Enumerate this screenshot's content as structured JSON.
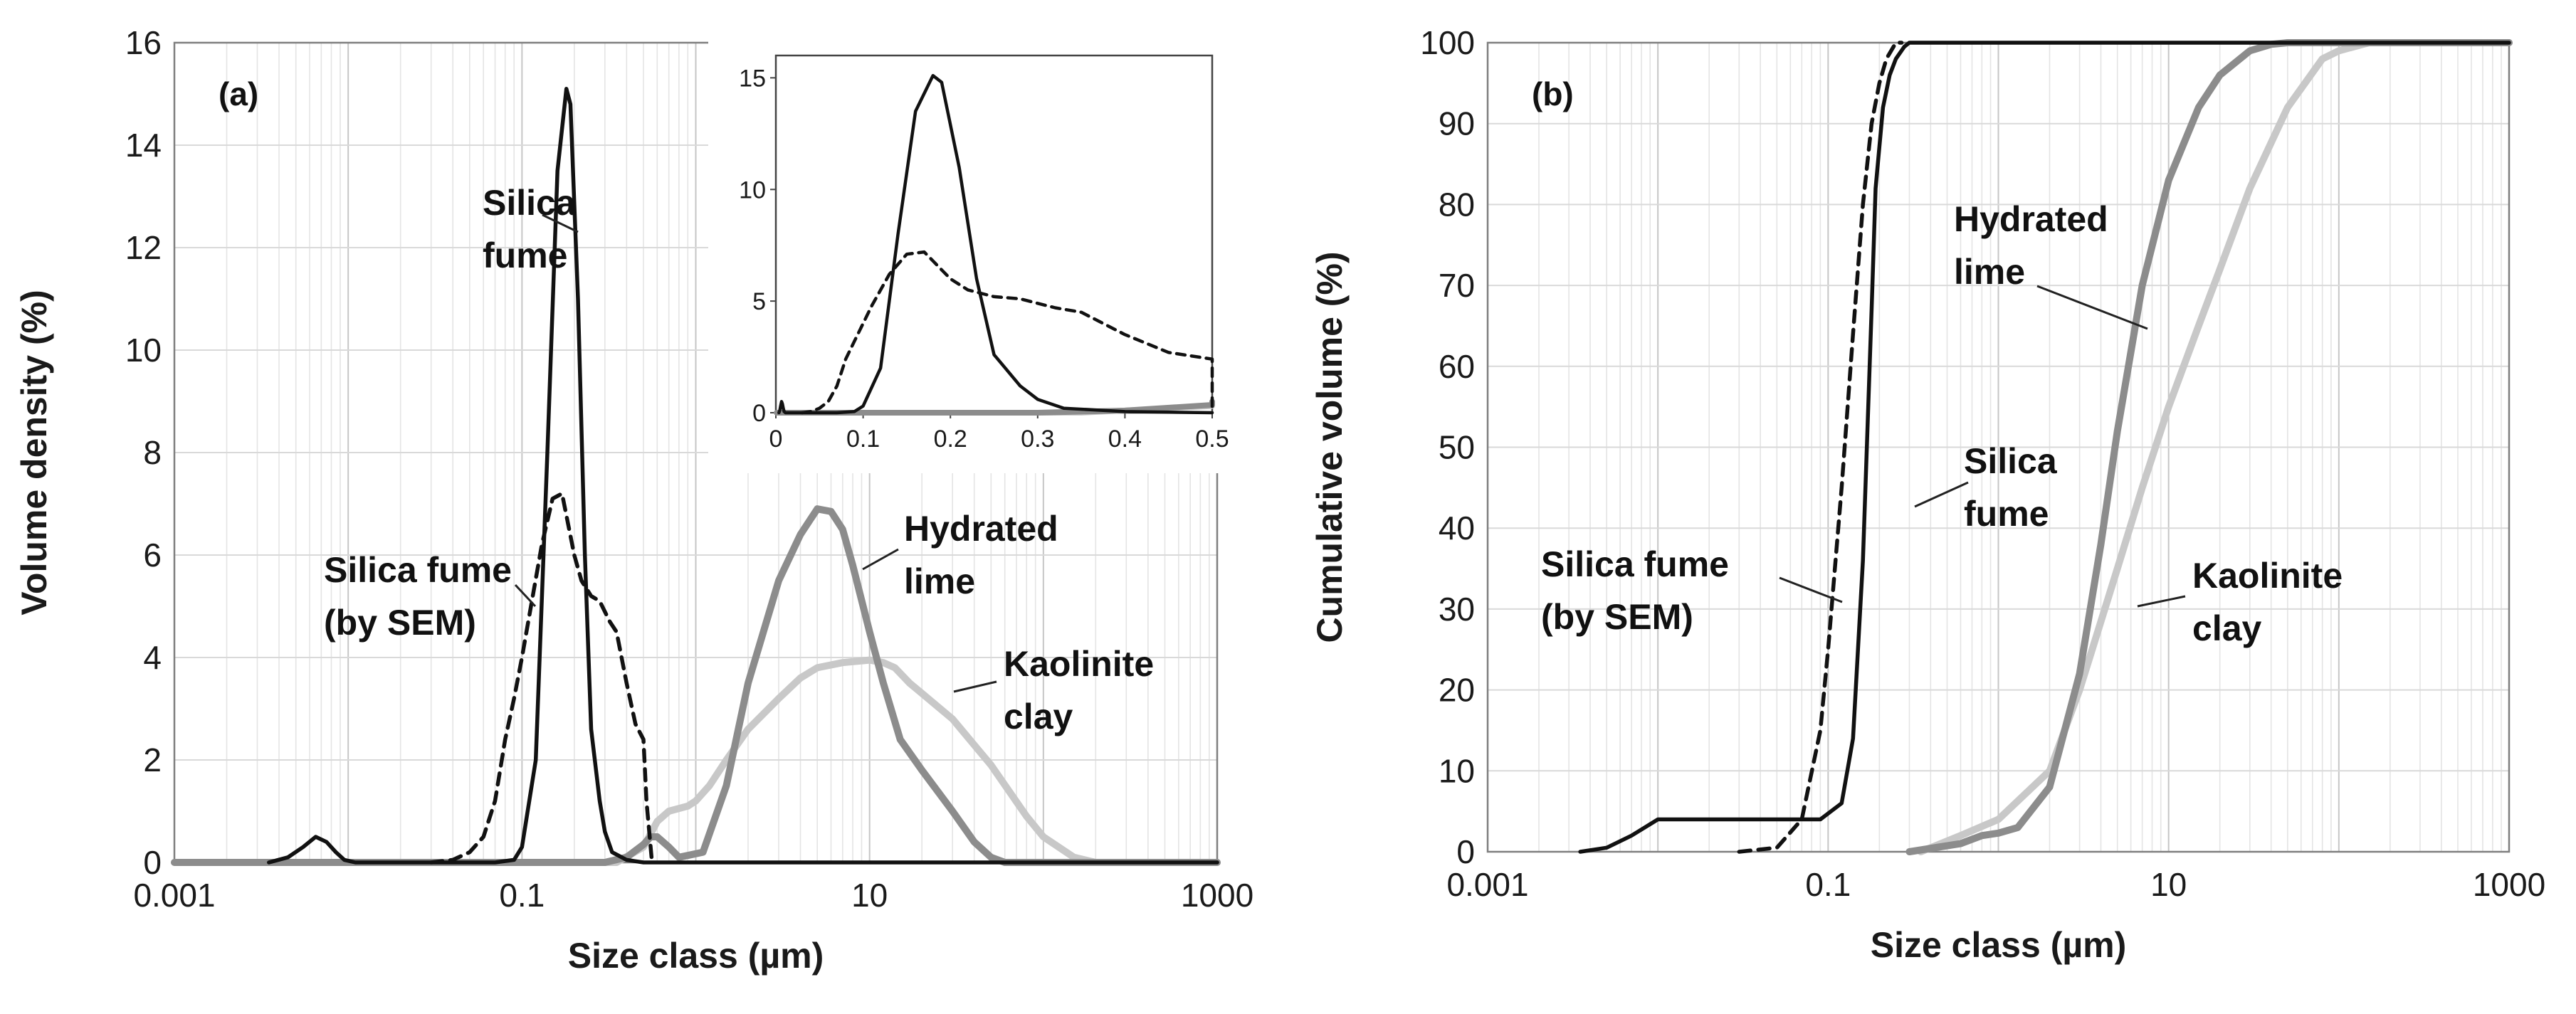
{
  "chart_data": [
    {
      "type": "line",
      "panel_label": "(a)",
      "xlabel": "Size class (µm)",
      "ylabel": "Volume density (%)",
      "xscale": "log",
      "xlim": [
        0.001,
        1000
      ],
      "ylim": [
        0,
        16
      ],
      "xticks": [
        "0.001",
        "0.1",
        "10",
        "1000"
      ],
      "yticks": [
        "0",
        "2",
        "4",
        "6",
        "8",
        "10",
        "12",
        "14",
        "16"
      ],
      "grid": "log-x minor grid",
      "series": [
        {
          "name": "Silica fume",
          "style": "solid",
          "color": "#111111",
          "x": [
            0.0035,
            0.0045,
            0.0055,
            0.0065,
            0.0075,
            0.0085,
            0.0095,
            0.011,
            0.013,
            0.025,
            0.07,
            0.09,
            0.1,
            0.12,
            0.14,
            0.16,
            0.18,
            0.19,
            0.21,
            0.23,
            0.25,
            0.28,
            0.3,
            0.33,
            0.4,
            0.5,
            1000
          ],
          "y": [
            0,
            0.1,
            0.3,
            0.5,
            0.4,
            0.2,
            0.05,
            0,
            0,
            0,
            0,
            0.05,
            0.3,
            2,
            8,
            13.5,
            15.1,
            14.8,
            11,
            6,
            2.6,
            1.2,
            0.6,
            0.2,
            0.05,
            0,
            0
          ]
        },
        {
          "name": "Silica fume (by SEM)",
          "style": "dashed",
          "color": "#111111",
          "x": [
            0.03,
            0.04,
            0.05,
            0.06,
            0.07,
            0.08,
            0.09,
            0.1,
            0.11,
            0.13,
            0.15,
            0.17,
            0.2,
            0.22,
            0.25,
            0.28,
            0.32,
            0.35,
            0.4,
            0.45,
            0.5,
            0.52,
            0.56
          ],
          "y": [
            0,
            0.05,
            0.2,
            0.5,
            1.2,
            2.4,
            3.2,
            4,
            4.8,
            6.2,
            7.1,
            7.2,
            6,
            5.5,
            5.2,
            5.1,
            4.7,
            4.5,
            3.5,
            2.7,
            2.4,
            1.2,
            0
          ]
        },
        {
          "name": "Hydrated lime",
          "style": "solid",
          "color": "#8c8c8c",
          "x": [
            0.001,
            0.3,
            0.4,
            0.5,
            0.55,
            0.6,
            0.7,
            0.8,
            1.1,
            1.5,
            2,
            3,
            4,
            5,
            6,
            7,
            8,
            10,
            12,
            15,
            20,
            30,
            40,
            50,
            60,
            1000
          ],
          "y": [
            0,
            0,
            0.1,
            0.35,
            0.5,
            0.5,
            0.3,
            0.1,
            0.2,
            1.5,
            3.5,
            5.5,
            6.4,
            6.9,
            6.85,
            6.5,
            5.8,
            4.5,
            3.5,
            2.4,
            1.8,
            1,
            0.4,
            0.1,
            0,
            0
          ]
        },
        {
          "name": "Kaolinite clay",
          "style": "solid",
          "color": "#c8c8c8",
          "x": [
            0.001,
            0.35,
            0.5,
            0.6,
            0.7,
            0.9,
            1,
            1.2,
            1.5,
            2,
            3,
            4,
            5,
            7,
            10,
            12,
            14,
            17,
            20,
            30,
            50,
            80,
            100,
            150,
            200,
            1000
          ],
          "y": [
            0,
            0,
            0.3,
            0.8,
            1,
            1.1,
            1.2,
            1.5,
            2,
            2.6,
            3.2,
            3.6,
            3.8,
            3.9,
            3.95,
            3.9,
            3.8,
            3.5,
            3.3,
            2.8,
            1.9,
            0.9,
            0.5,
            0.1,
            0,
            0
          ]
        }
      ],
      "annotations": [
        {
          "lines": [
            "Silica",
            "fume"
          ]
        },
        {
          "lines": [
            "Silica fume",
            "(by SEM)"
          ]
        },
        {
          "lines": [
            "Hydrated",
            "lime"
          ]
        },
        {
          "lines": [
            "Kaolinite",
            "clay"
          ]
        }
      ],
      "inset": {
        "type": "line",
        "xscale": "linear",
        "xlim": [
          0,
          0.5
        ],
        "ylim": [
          0,
          16
        ],
        "xticks": [
          "0",
          "0.1",
          "0.2",
          "0.3",
          "0.4",
          "0.5"
        ],
        "yticks": [
          "0",
          "5",
          "10",
          "15"
        ]
      }
    },
    {
      "type": "line",
      "panel_label": "(b)",
      "xlabel": "Size class (µm)",
      "ylabel": "Cumulative volume (%)",
      "xscale": "log",
      "xlim": [
        0.001,
        1000
      ],
      "ylim": [
        0,
        100
      ],
      "xticks": [
        "0.001",
        "0.1",
        "10",
        "1000"
      ],
      "yticks": [
        "0",
        "10",
        "20",
        "30",
        "40",
        "50",
        "60",
        "70",
        "80",
        "90",
        "100"
      ],
      "grid": "log-x minor grid + horizontal major grid",
      "series": [
        {
          "name": "Silica fume",
          "style": "solid",
          "color": "#111111",
          "x": [
            0.0035,
            0.005,
            0.007,
            0.01,
            0.03,
            0.09,
            0.12,
            0.14,
            0.16,
            0.18,
            0.19,
            0.21,
            0.23,
            0.25,
            0.28,
            0.3,
            0.35,
            0.5,
            1000
          ],
          "y": [
            0,
            0.5,
            2,
            4,
            4,
            4,
            6,
            14,
            36,
            67,
            82,
            92,
            96,
            98,
            99.5,
            100,
            100,
            100,
            100
          ]
        },
        {
          "name": "Silica fume (by SEM)",
          "style": "dashed",
          "color": "#111111",
          "x": [
            0.03,
            0.05,
            0.07,
            0.09,
            0.1,
            0.12,
            0.14,
            0.16,
            0.18,
            0.2,
            0.22,
            0.25,
            0.27
          ],
          "y": [
            0,
            0.5,
            4,
            15,
            25,
            45,
            64,
            80,
            90,
            95,
            98,
            100,
            100
          ]
        },
        {
          "name": "Hydrated lime",
          "style": "solid",
          "color": "#8c8c8c",
          "x": [
            0.3,
            0.6,
            0.8,
            1,
            1.3,
            2,
            3,
            4,
            5,
            7,
            10,
            15,
            20,
            30,
            40,
            50,
            60,
            1000
          ],
          "y": [
            0,
            1,
            2,
            2.3,
            3,
            8,
            22,
            38,
            52,
            70,
            83,
            92,
            96,
            99,
            99.8,
            100,
            100,
            100
          ]
        },
        {
          "name": "Kaolinite clay",
          "style": "solid",
          "color": "#c8c8c8",
          "x": [
            0.35,
            0.6,
            1,
            2,
            3,
            5,
            7,
            10,
            15,
            20,
            30,
            50,
            80,
            100,
            150,
            200,
            1000
          ],
          "y": [
            0,
            2,
            4,
            10,
            20,
            35,
            45,
            55,
            65,
            72,
            82,
            92,
            98,
            99,
            100,
            100,
            100
          ]
        }
      ],
      "annotations": [
        {
          "lines": [
            "Hydrated",
            "lime"
          ]
        },
        {
          "lines": [
            "Silica",
            "fume"
          ]
        },
        {
          "lines": [
            "Silica fume",
            "(by SEM)"
          ]
        },
        {
          "lines": [
            "Kaolinite",
            "clay"
          ]
        }
      ]
    }
  ]
}
